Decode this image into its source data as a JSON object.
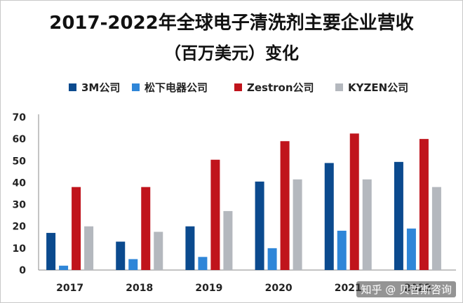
{
  "chart_data": {
    "type": "bar",
    "title": "2017-2022年全球电子清洗剂主要企业营收",
    "subtitle": "（百万美元）变化",
    "categories": [
      "2017",
      "2018",
      "2019",
      "2020",
      "2021",
      "2022"
    ],
    "series": [
      {
        "name": "3M公司",
        "color": "#0b4a8e",
        "values": [
          17,
          13,
          20,
          40.5,
          49,
          49.5
        ]
      },
      {
        "name": "松下电器公司",
        "color": "#2f86d8",
        "values": [
          2,
          5,
          6,
          10,
          18,
          19
        ]
      },
      {
        "name": "Zestron公司",
        "color": "#c0141c",
        "values": [
          38,
          38,
          50.5,
          59,
          62.5,
          60
        ]
      },
      {
        "name": "KYZEN公司",
        "color": "#b4b8be",
        "values": [
          20,
          17.5,
          27,
          41.5,
          41.5,
          38
        ]
      }
    ],
    "ylim": [
      0,
      70
    ],
    "yticks": [
      0,
      10,
      20,
      30,
      40,
      50,
      60,
      70
    ],
    "grid": false,
    "legend_position": "top"
  },
  "watermark": "知乎 @ 贝哲斯咨询"
}
